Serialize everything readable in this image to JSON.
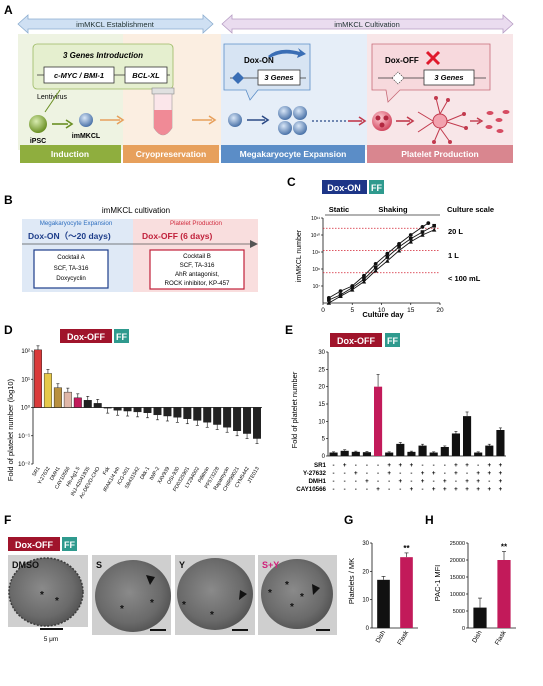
{
  "panelA": {
    "label": "A",
    "arrow_left": "imMKCL Establishment",
    "arrow_right": "imMKCL Cultivation",
    "genes_intro": "3 Genes  Introduction",
    "gene1": "c-MYC / BMI-1",
    "gene2": "BCL-XL",
    "lentivirus": "Lentivirus",
    "ipsc": "iPSC",
    "immkcl": "imMKCL",
    "dox_on": "Dox-ON",
    "dox_on_genes": "3 Genes",
    "dox_off": "Dox-OFF",
    "dox_off_genes": "3 Genes",
    "stages": [
      "Induction",
      "Cryopreservation",
      "Megakaryocyte Expansion",
      "Platelet Production"
    ],
    "colors": {
      "induction": "#8fae3e",
      "cryo": "#e7a05c",
      "expansion": "#5b8dc7",
      "platelet": "#d9868f"
    }
  },
  "panelB": {
    "label": "B",
    "title": "imMKCL cultivation",
    "expansion_label": "Megakaryocyte Expansion",
    "production_label": "Platelet Production",
    "dox_on": "Dox-ON（～20 days)",
    "dox_off": "Dox-OFF   (6 days)",
    "cocktailA_title": "Cocktail A",
    "cocktailA_items": [
      "SCF, TA-316",
      "Doxycyclin"
    ],
    "cocktailB_title": "Cocktail B",
    "cocktailB_items": [
      "SCF, TA-316",
      "AhR antagonist,",
      "ROCK inhibitor, KP-457"
    ]
  },
  "panelC": {
    "label": "C",
    "tag_main": "Dox-ON",
    "tag_ff": "FF",
    "static": "Static",
    "shaking": "Shaking",
    "culture_scale": "Culture scale",
    "scales": [
      "20 L",
      "1 L",
      "< 100 mL"
    ],
    "ylabel": "imMKCL number",
    "xlabel": "Culture day",
    "xticks": [
      "0",
      "5",
      "10",
      "15",
      "20"
    ],
    "yticks": [
      "10⁷",
      "10⁸",
      "10⁹",
      "10¹⁰",
      "10¹¹"
    ]
  },
  "panelD": {
    "label": "D",
    "tag_main": "Dox-OFF",
    "tag_ff": "FF",
    "ylabel": "Fold of platelet number  (log10)",
    "yticks": [
      "10²",
      "10¹",
      "10⁰",
      "10⁻¹",
      "10⁻²"
    ]
  },
  "panelE": {
    "label": "E",
    "tag_main": "Dox-OFF",
    "tag_ff": "FF",
    "ylabel": "Fold of platelet number",
    "yticks": [
      "0",
      "5",
      "10",
      "15",
      "20",
      "25",
      "30"
    ],
    "row_labels": [
      "SR1",
      "Y-27632",
      "DMH1",
      "CAY10566"
    ],
    "rows": [
      [
        "-",
        "+",
        "-",
        "-",
        "-",
        "+",
        "+",
        "+",
        "-",
        "-",
        "-",
        "+",
        "+",
        "-",
        "+",
        "+"
      ],
      [
        "-",
        "-",
        "+",
        "-",
        "-",
        "+",
        "-",
        "-",
        "+",
        "+",
        "-",
        "+",
        "-",
        "+",
        "+",
        "+"
      ],
      [
        "-",
        "-",
        "-",
        "+",
        "-",
        "-",
        "+",
        "-",
        "+",
        "-",
        "+",
        "-",
        "+",
        "+",
        "-",
        "+"
      ],
      [
        "-",
        "-",
        "-",
        "-",
        "+",
        "-",
        "-",
        "+",
        "-",
        "+",
        "+",
        "+",
        "+",
        "+",
        "+",
        "+"
      ]
    ]
  },
  "panelF": {
    "label": "F",
    "tag_main": "Dox-OFF",
    "tag_ff": "FF",
    "images": [
      "DMSO",
      "S",
      "Y",
      "S+Y"
    ],
    "scalebar": "5 μm"
  },
  "panelG": {
    "label": "G",
    "ylabel": "Platelets / MK",
    "yticks": [
      "0",
      "10",
      "20",
      "30"
    ],
    "sig": "**"
  },
  "panelH": {
    "label": "H",
    "ylabel": "PAC-1 MFI",
    "yticks": [
      "0",
      "5000",
      "10000",
      "15000",
      "20000",
      "25000"
    ],
    "sig": "**"
  },
  "chart_data": [
    {
      "id": "C",
      "type": "line",
      "xlabel": "Culture day",
      "ylabel": "imMKCL number",
      "log_y": true,
      "xlim": [
        0,
        20
      ],
      "ylim": [
        1000000,
        100000000000
      ],
      "series": [
        {
          "x": [
            1,
            3,
            5,
            7,
            9,
            11,
            13,
            15,
            17,
            18
          ],
          "y": [
            2000000.0,
            5000000.0,
            10000000.0,
            40000000.0,
            200000000.0,
            800000000.0,
            3000000000.0,
            10000000000.0,
            30000000000.0,
            50000000000.0
          ]
        },
        {
          "x": [
            1,
            3,
            5,
            7,
            9,
            11,
            13,
            15,
            17,
            19
          ],
          "y": [
            1500000.0,
            3000000.0,
            8000000.0,
            25000000.0,
            120000000.0,
            500000000.0,
            2000000000.0,
            6000000000.0,
            15000000000.0,
            35000000000.0
          ]
        },
        {
          "x": [
            1,
            3,
            5,
            7,
            9,
            11,
            13,
            15,
            17,
            19
          ],
          "y": [
            1000000.0,
            2500000.0,
            6000000.0,
            18000000.0,
            80000000.0,
            300000000.0,
            1200000000.0,
            4000000000.0,
            10000000000.0,
            20000000000.0
          ]
        }
      ]
    },
    {
      "id": "D",
      "type": "bar",
      "log_y": true,
      "ylabel": "Fold of platelet number  (log10)",
      "ylim": [
        0.01,
        100
      ],
      "categories": [
        "SR1",
        "Y-27632",
        "DMH1",
        "CAY10566",
        "Hh-Ag1.5",
        "INJ-42041935",
        "Ac-DEVD-CHO",
        "Fsk",
        "IRAK1/4 inh",
        "ICG-001",
        "SB431542",
        "Dkk-1",
        "IWP-2",
        "XAV939",
        "OSI-930",
        "PD0325901",
        "LY294002",
        "Pifithrin",
        "PF573228",
        "Rapamycin",
        "CHIR99021",
        "CYM5442",
        "JTE013"
      ],
      "values": [
        110,
        16,
        5,
        3.5,
        2.2,
        1.8,
        1.4,
        0.95,
        0.8,
        0.75,
        0.7,
        0.65,
        0.55,
        0.5,
        0.45,
        0.4,
        0.35,
        0.3,
        0.25,
        0.2,
        0.15,
        0.12,
        0.08
      ],
      "colors": [
        "#d93a3a",
        "#e6c84a",
        "#b8903f",
        "#e0b7a8",
        "#c21a5a",
        "#222",
        "#222",
        "#222",
        "#222",
        "#222",
        "#222",
        "#222",
        "#222",
        "#222",
        "#222",
        "#222",
        "#222",
        "#222",
        "#222",
        "#222",
        "#222",
        "#222",
        "#222"
      ]
    },
    {
      "id": "E",
      "type": "bar",
      "ylabel": "Fold of platelet number",
      "ylim": [
        0,
        30
      ],
      "values": [
        1.0,
        1.5,
        1.2,
        1.1,
        20.0,
        1.0,
        3.5,
        1.2,
        3.0,
        1.0,
        2.6,
        6.5,
        11.5,
        1.0,
        3.0,
        7.5
      ],
      "errors": [
        0.2,
        0.3,
        0.2,
        0.2,
        3.5,
        0.2,
        0.4,
        0.2,
        0.4,
        0.2,
        0.3,
        0.6,
        1.2,
        0.2,
        0.4,
        0.6
      ],
      "highlight_index": 4
    },
    {
      "id": "G",
      "type": "bar",
      "ylabel": "Platelets / MK",
      "ylim": [
        0,
        30
      ],
      "categories": [
        "Dish",
        "Flask"
      ],
      "values": [
        17,
        25
      ],
      "errors": [
        1.2,
        1.5
      ]
    },
    {
      "id": "H",
      "type": "bar",
      "ylabel": "PAC-1 MFI",
      "ylim": [
        0,
        25000
      ],
      "categories": [
        "Dish",
        "Flask"
      ],
      "values": [
        6000,
        20000
      ],
      "errors": [
        2800,
        2500
      ]
    }
  ]
}
